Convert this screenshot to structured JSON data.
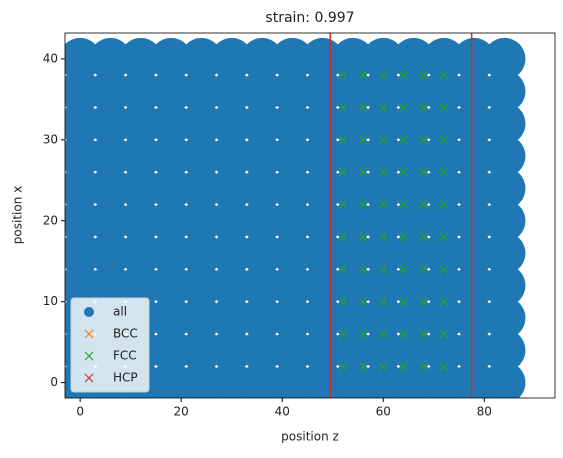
{
  "chart_data": {
    "type": "scatter",
    "title": "strain: 0.997",
    "xlabel": "position z",
    "ylabel": "position x",
    "xlim": [
      -3,
      94
    ],
    "ylim": [
      -1.9,
      43.2
    ],
    "xticks": [
      0,
      20,
      40,
      60,
      80
    ],
    "yticks": [
      0,
      10,
      20,
      30,
      40
    ],
    "legend": "lower left",
    "vlines": {
      "color": "#d62728",
      "values": [
        49.5,
        77.5
      ]
    },
    "series": [
      {
        "name": "all",
        "marker": "o",
        "color": "#1f77b4",
        "x": [
          0,
          0,
          0,
          0,
          0,
          0,
          0,
          0,
          0,
          0,
          0,
          6,
          6,
          6,
          6,
          6,
          6,
          6,
          6,
          6,
          6,
          6,
          12,
          12,
          12,
          12,
          12,
          12,
          12,
          12,
          12,
          12,
          12,
          18,
          18,
          18,
          18,
          18,
          18,
          18,
          18,
          18,
          18,
          18,
          24,
          24,
          24,
          24,
          24,
          24,
          24,
          24,
          24,
          24,
          24,
          30,
          30,
          30,
          30,
          30,
          30,
          30,
          30,
          30,
          30,
          30,
          36,
          36,
          36,
          36,
          36,
          36,
          36,
          36,
          36,
          36,
          36,
          42,
          42,
          42,
          42,
          42,
          42,
          42,
          42,
          42,
          42,
          42,
          48,
          48,
          48,
          48,
          48,
          48,
          48,
          48,
          48,
          48,
          48,
          54,
          54,
          54,
          54,
          54,
          54,
          54,
          54,
          54,
          54,
          54,
          60,
          60,
          60,
          60,
          60,
          60,
          60,
          60,
          60,
          60,
          60,
          66,
          66,
          66,
          66,
          66,
          66,
          66,
          66,
          66,
          66,
          66,
          72,
          72,
          72,
          72,
          72,
          72,
          72,
          72,
          72,
          72,
          72,
          78,
          78,
          78,
          78,
          78,
          78,
          78,
          78,
          78,
          78,
          78,
          84,
          84,
          84,
          84,
          84,
          84,
          84,
          84,
          84,
          84,
          84
        ],
        "y": [
          0,
          4,
          8,
          12,
          16,
          20,
          24,
          28,
          32,
          36,
          40,
          0,
          4,
          8,
          12,
          16,
          20,
          24,
          28,
          32,
          36,
          40,
          0,
          4,
          8,
          12,
          16,
          20,
          24,
          28,
          32,
          36,
          40,
          0,
          4,
          8,
          12,
          16,
          20,
          24,
          28,
          32,
          36,
          40,
          0,
          4,
          8,
          12,
          16,
          20,
          24,
          28,
          32,
          36,
          40,
          0,
          4,
          8,
          12,
          16,
          20,
          24,
          28,
          32,
          36,
          40,
          0,
          4,
          8,
          12,
          16,
          20,
          24,
          28,
          32,
          36,
          40,
          0,
          4,
          8,
          12,
          16,
          20,
          24,
          28,
          32,
          36,
          40,
          0,
          4,
          8,
          12,
          16,
          20,
          24,
          28,
          32,
          36,
          40,
          0,
          4,
          8,
          12,
          16,
          20,
          24,
          28,
          32,
          36,
          40,
          0,
          4,
          8,
          12,
          16,
          20,
          24,
          28,
          32,
          36,
          40,
          0,
          4,
          8,
          12,
          16,
          20,
          24,
          28,
          32,
          36,
          40,
          0,
          4,
          8,
          12,
          16,
          20,
          24,
          28,
          32,
          36,
          40,
          0,
          4,
          8,
          12,
          16,
          20,
          24,
          28,
          32,
          36,
          40,
          0,
          4,
          8,
          12,
          16,
          20,
          24,
          28,
          32,
          36,
          40
        ]
      },
      {
        "name": "BCC",
        "marker": "x",
        "color": "#ff7f0e",
        "x": [],
        "y": []
      },
      {
        "name": "FCC",
        "marker": "x",
        "color": "#2ca02c",
        "x": [
          52,
          52,
          52,
          52,
          52,
          52,
          52,
          52,
          52,
          52,
          56,
          56,
          56,
          56,
          56,
          56,
          56,
          56,
          56,
          56,
          60,
          60,
          60,
          60,
          60,
          60,
          60,
          60,
          60,
          60,
          64,
          64,
          64,
          64,
          64,
          64,
          64,
          64,
          64,
          64,
          68,
          68,
          68,
          68,
          68,
          68,
          68,
          68,
          68,
          68,
          72,
          72,
          72,
          72,
          72,
          72,
          72,
          72,
          72,
          72
        ],
        "y": [
          2,
          6,
          10,
          14,
          18,
          22,
          26,
          30,
          34,
          38,
          2,
          6,
          10,
          14,
          18,
          22,
          26,
          30,
          34,
          38,
          2,
          6,
          10,
          14,
          18,
          22,
          26,
          30,
          34,
          38,
          2,
          6,
          10,
          14,
          18,
          22,
          26,
          30,
          34,
          38,
          2,
          6,
          10,
          14,
          18,
          22,
          26,
          30,
          34,
          38,
          2,
          6,
          10,
          14,
          18,
          22,
          26,
          30,
          34,
          38
        ]
      },
      {
        "name": "HCP",
        "marker": "x",
        "color": "#d62728",
        "x": [],
        "y": []
      }
    ]
  }
}
